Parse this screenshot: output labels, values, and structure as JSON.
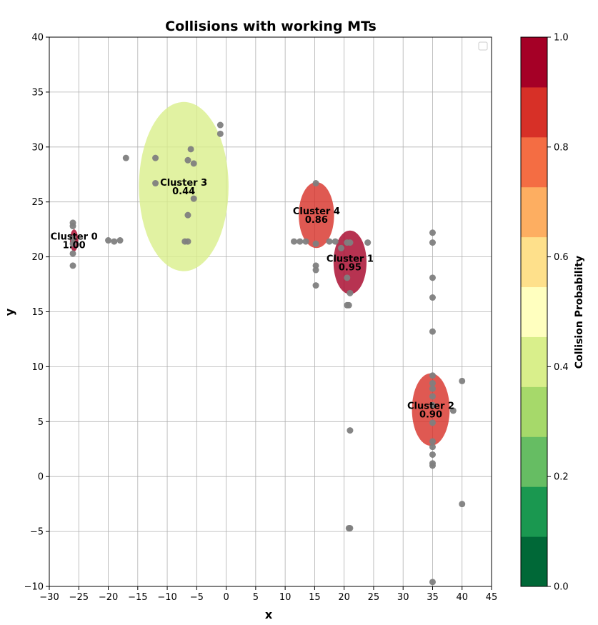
{
  "chart_data": {
    "type": "scatter",
    "title": "Collisions with working MTs",
    "xlabel": "x",
    "ylabel": "y",
    "xlim": [
      -30,
      45
    ],
    "ylim": [
      -10,
      40
    ],
    "xticks": [
      -30,
      -25,
      -20,
      -15,
      -10,
      -5,
      0,
      5,
      10,
      15,
      20,
      25,
      30,
      35,
      40,
      45
    ],
    "yticks": [
      -10,
      -5,
      0,
      5,
      10,
      15,
      20,
      25,
      30,
      35,
      40
    ],
    "grid": true,
    "legend": "top-right (empty)",
    "colorbar": {
      "label": "Collision Probability",
      "range": [
        0,
        1
      ],
      "ticks": [
        0.0,
        0.2,
        0.4,
        0.6,
        0.8,
        1.0
      ],
      "colors": [
        "#006837",
        "#1a9850",
        "#66bd63",
        "#a6d96a",
        "#d9ef8b",
        "#ffffbf",
        "#fee08b",
        "#fdae61",
        "#f46d43",
        "#d73027",
        "#a50026"
      ]
    },
    "points_color": "#808080",
    "points": [
      [
        -26,
        23.1
      ],
      [
        -26,
        22.8
      ],
      [
        -26,
        21.7
      ],
      [
        -26,
        21.2
      ],
      [
        -26,
        20.3
      ],
      [
        -26,
        19.2
      ],
      [
        -20,
        21.5
      ],
      [
        -19,
        21.4
      ],
      [
        -18,
        21.5
      ],
      [
        -17,
        29.0
      ],
      [
        -12,
        29.0
      ],
      [
        -12,
        26.7
      ],
      [
        -7,
        21.4
      ],
      [
        -6.5,
        21.4
      ],
      [
        -6.5,
        28.8
      ],
      [
        -6,
        29.8
      ],
      [
        -5.5,
        28.5
      ],
      [
        -6.5,
        23.8
      ],
      [
        -5.5,
        25.3
      ],
      [
        -1,
        32.0
      ],
      [
        -1,
        31.2
      ],
      [
        11.5,
        21.4
      ],
      [
        12.5,
        21.4
      ],
      [
        13.5,
        21.4
      ],
      [
        15.2,
        26.7
      ],
      [
        15.2,
        21.2
      ],
      [
        15.2,
        19.2
      ],
      [
        15.2,
        18.8
      ],
      [
        15.2,
        17.4
      ],
      [
        17.5,
        21.4
      ],
      [
        18.5,
        21.4
      ],
      [
        19.5,
        20.8
      ],
      [
        20.5,
        21.3
      ],
      [
        21,
        21.3
      ],
      [
        24,
        21.3
      ],
      [
        20.5,
        18.1
      ],
      [
        21,
        16.7
      ],
      [
        20.5,
        15.6
      ],
      [
        20.8,
        15.6
      ],
      [
        21,
        4.2
      ],
      [
        21,
        -4.7
      ],
      [
        20.8,
        -4.7
      ],
      [
        35,
        22.2
      ],
      [
        35,
        21.3
      ],
      [
        35,
        18.1
      ],
      [
        35,
        16.3
      ],
      [
        35,
        13.2
      ],
      [
        35,
        9.2
      ],
      [
        35,
        8.5
      ],
      [
        35,
        8.0
      ],
      [
        35,
        7.3
      ],
      [
        35,
        6.5
      ],
      [
        35,
        4.9
      ],
      [
        35,
        3.2
      ],
      [
        35,
        2.7
      ],
      [
        35,
        2.0
      ],
      [
        35,
        1.2
      ],
      [
        35,
        1.0
      ],
      [
        35,
        -9.6
      ],
      [
        38.5,
        6.0
      ],
      [
        40,
        8.7
      ],
      [
        40,
        -2.5
      ]
    ],
    "clusters": [
      {
        "name": "Cluster 0",
        "prob_label": "1.00",
        "probability": 1.0,
        "cx": -25.8,
        "cy": 21.5,
        "rx": 0.7,
        "ry": 1.0,
        "color": "#a50026"
      },
      {
        "name": "Cluster 1",
        "prob_label": "0.95",
        "probability": 0.95,
        "cx": 21.0,
        "cy": 19.5,
        "rx": 2.8,
        "ry": 2.9,
        "color": "#a50026"
      },
      {
        "name": "Cluster 2",
        "prob_label": "0.90",
        "probability": 0.9,
        "cx": 34.7,
        "cy": 6.1,
        "rx": 3.2,
        "ry": 3.3,
        "color": "#d73027"
      },
      {
        "name": "Cluster 3",
        "prob_label": "0.44",
        "probability": 0.44,
        "cx": -7.2,
        "cy": 26.4,
        "rx": 7.6,
        "ry": 7.7,
        "color": "#d9ef8b"
      },
      {
        "name": "Cluster 4",
        "prob_label": "0.86",
        "probability": 0.86,
        "cx": 15.3,
        "cy": 23.8,
        "rx": 3.0,
        "ry": 3.0,
        "color": "#d73027"
      }
    ]
  }
}
